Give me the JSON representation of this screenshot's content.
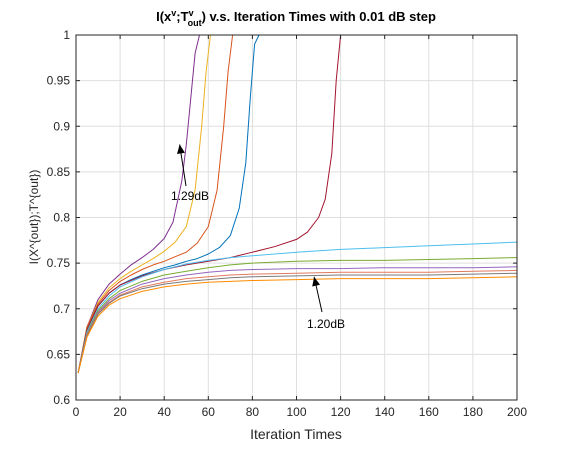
{
  "chart_data": {
    "type": "line",
    "title": {
      "prefix": "I(x",
      "sup1": "v",
      "mid": ";T",
      "sup2": "v",
      "sub2": "out",
      "suffix": ") v.s. Iteration Times with 0.01 dB step"
    },
    "xlabel": "Iteration Times",
    "ylabel": "I(X^{out});T^{out})",
    "xlim": [
      0,
      200
    ],
    "ylim": [
      0.6,
      1.0
    ],
    "xticks": [
      0,
      20,
      40,
      60,
      80,
      100,
      120,
      140,
      160,
      180,
      200
    ],
    "yticks": [
      0.6,
      0.65,
      0.7,
      0.75,
      0.8,
      0.85,
      0.9,
      0.95,
      1.0
    ],
    "grid": true,
    "annotations": [
      {
        "text": "1.29dB",
        "points_to": {
          "x": 47,
          "y": 0.88
        }
      },
      {
        "text": "1.20dB",
        "points_to": {
          "x": 108,
          "y": 0.735
        }
      }
    ],
    "series": [
      {
        "color": "#7E2F8E",
        "points": [
          [
            1,
            0.63
          ],
          [
            5,
            0.68
          ],
          [
            10,
            0.71
          ],
          [
            15,
            0.727
          ],
          [
            20,
            0.738
          ],
          [
            25,
            0.748
          ],
          [
            30,
            0.756
          ],
          [
            35,
            0.765
          ],
          [
            40,
            0.777
          ],
          [
            44,
            0.795
          ],
          [
            48,
            0.84
          ],
          [
            50,
            0.88
          ],
          [
            52,
            0.93
          ],
          [
            54,
            0.98
          ],
          [
            56,
            1.0
          ],
          [
            200,
            1.0
          ]
        ]
      },
      {
        "color": "#EDB120",
        "points": [
          [
            1,
            0.63
          ],
          [
            5,
            0.68
          ],
          [
            10,
            0.707
          ],
          [
            15,
            0.723
          ],
          [
            20,
            0.733
          ],
          [
            25,
            0.741
          ],
          [
            30,
            0.748
          ],
          [
            35,
            0.755
          ],
          [
            40,
            0.763
          ],
          [
            45,
            0.773
          ],
          [
            50,
            0.79
          ],
          [
            54,
            0.83
          ],
          [
            57,
            0.9
          ],
          [
            59,
            0.96
          ],
          [
            61,
            1.0
          ],
          [
            200,
            1.0
          ]
        ]
      },
      {
        "color": "#D95319",
        "points": [
          [
            1,
            0.63
          ],
          [
            5,
            0.68
          ],
          [
            10,
            0.705
          ],
          [
            15,
            0.72
          ],
          [
            20,
            0.73
          ],
          [
            25,
            0.737
          ],
          [
            30,
            0.743
          ],
          [
            35,
            0.748
          ],
          [
            40,
            0.752
          ],
          [
            45,
            0.757
          ],
          [
            50,
            0.762
          ],
          [
            55,
            0.772
          ],
          [
            60,
            0.79
          ],
          [
            64,
            0.83
          ],
          [
            67,
            0.9
          ],
          [
            69,
            0.96
          ],
          [
            71,
            1.0
          ],
          [
            200,
            1.0
          ]
        ]
      },
      {
        "color": "#0072BD",
        "points": [
          [
            1,
            0.63
          ],
          [
            5,
            0.677
          ],
          [
            10,
            0.703
          ],
          [
            15,
            0.717
          ],
          [
            20,
            0.726
          ],
          [
            25,
            0.732
          ],
          [
            30,
            0.737
          ],
          [
            35,
            0.741
          ],
          [
            40,
            0.745
          ],
          [
            45,
            0.748
          ],
          [
            50,
            0.752
          ],
          [
            55,
            0.755
          ],
          [
            60,
            0.76
          ],
          [
            65,
            0.767
          ],
          [
            70,
            0.78
          ],
          [
            74,
            0.81
          ],
          [
            77,
            0.86
          ],
          [
            79,
            0.93
          ],
          [
            81,
            0.99
          ],
          [
            83,
            1.0
          ],
          [
            200,
            1.0
          ]
        ]
      },
      {
        "color": "#A2142F",
        "points": [
          [
            1,
            0.63
          ],
          [
            5,
            0.677
          ],
          [
            10,
            0.703
          ],
          [
            15,
            0.717
          ],
          [
            20,
            0.726
          ],
          [
            30,
            0.736
          ],
          [
            40,
            0.743
          ],
          [
            50,
            0.748
          ],
          [
            60,
            0.752
          ],
          [
            70,
            0.756
          ],
          [
            80,
            0.762
          ],
          [
            90,
            0.768
          ],
          [
            100,
            0.776
          ],
          [
            105,
            0.784
          ],
          [
            110,
            0.8
          ],
          [
            113,
            0.82
          ],
          [
            116,
            0.87
          ],
          [
            118,
            0.95
          ],
          [
            120,
            1.0
          ],
          [
            200,
            1.0
          ]
        ]
      },
      {
        "color": "#4DBEEE",
        "points": [
          [
            1,
            0.63
          ],
          [
            5,
            0.675
          ],
          [
            10,
            0.7
          ],
          [
            15,
            0.714
          ],
          [
            20,
            0.724
          ],
          [
            30,
            0.735
          ],
          [
            40,
            0.743
          ],
          [
            50,
            0.749
          ],
          [
            60,
            0.753
          ],
          [
            70,
            0.756
          ],
          [
            80,
            0.758
          ],
          [
            100,
            0.762
          ],
          [
            120,
            0.765
          ],
          [
            140,
            0.767
          ],
          [
            160,
            0.769
          ],
          [
            180,
            0.771
          ],
          [
            200,
            0.773
          ]
        ]
      },
      {
        "color": "#77AC30",
        "points": [
          [
            1,
            0.63
          ],
          [
            5,
            0.673
          ],
          [
            10,
            0.698
          ],
          [
            15,
            0.711
          ],
          [
            20,
            0.72
          ],
          [
            30,
            0.73
          ],
          [
            40,
            0.737
          ],
          [
            50,
            0.741
          ],
          [
            60,
            0.745
          ],
          [
            70,
            0.748
          ],
          [
            80,
            0.75
          ],
          [
            100,
            0.752
          ],
          [
            120,
            0.753
          ],
          [
            140,
            0.753
          ],
          [
            160,
            0.754
          ],
          [
            180,
            0.755
          ],
          [
            200,
            0.756
          ]
        ]
      },
      {
        "color": "#9467BD",
        "points": [
          [
            1,
            0.63
          ],
          [
            5,
            0.672
          ],
          [
            10,
            0.696
          ],
          [
            15,
            0.709
          ],
          [
            20,
            0.717
          ],
          [
            30,
            0.727
          ],
          [
            40,
            0.733
          ],
          [
            50,
            0.737
          ],
          [
            60,
            0.74
          ],
          [
            70,
            0.742
          ],
          [
            80,
            0.743
          ],
          [
            100,
            0.744
          ],
          [
            120,
            0.744
          ],
          [
            140,
            0.745
          ],
          [
            160,
            0.745
          ],
          [
            180,
            0.745
          ],
          [
            200,
            0.746
          ]
        ]
      },
      {
        "color": "#E07A5F",
        "points": [
          [
            1,
            0.63
          ],
          [
            5,
            0.671
          ],
          [
            10,
            0.695
          ],
          [
            15,
            0.707
          ],
          [
            20,
            0.715
          ],
          [
            30,
            0.724
          ],
          [
            40,
            0.729
          ],
          [
            50,
            0.733
          ],
          [
            60,
            0.735
          ],
          [
            70,
            0.737
          ],
          [
            80,
            0.738
          ],
          [
            100,
            0.739
          ],
          [
            120,
            0.74
          ],
          [
            140,
            0.74
          ],
          [
            160,
            0.74
          ],
          [
            180,
            0.741
          ],
          [
            200,
            0.742
          ]
        ]
      },
      {
        "color": "#7A7A7A",
        "points": [
          [
            1,
            0.63
          ],
          [
            5,
            0.67
          ],
          [
            10,
            0.694
          ],
          [
            15,
            0.706
          ],
          [
            20,
            0.714
          ],
          [
            30,
            0.722
          ],
          [
            40,
            0.727
          ],
          [
            50,
            0.73
          ],
          [
            60,
            0.732
          ],
          [
            70,
            0.734
          ],
          [
            80,
            0.735
          ],
          [
            100,
            0.736
          ],
          [
            120,
            0.737
          ],
          [
            140,
            0.737
          ],
          [
            160,
            0.737
          ],
          [
            180,
            0.738
          ],
          [
            200,
            0.739
          ]
        ]
      },
      {
        "color": "#FF8C00",
        "points": [
          [
            1,
            0.63
          ],
          [
            5,
            0.669
          ],
          [
            10,
            0.692
          ],
          [
            15,
            0.704
          ],
          [
            20,
            0.711
          ],
          [
            30,
            0.719
          ],
          [
            40,
            0.724
          ],
          [
            50,
            0.727
          ],
          [
            60,
            0.729
          ],
          [
            70,
            0.73
          ],
          [
            80,
            0.731
          ],
          [
            100,
            0.732
          ],
          [
            120,
            0.733
          ],
          [
            140,
            0.733
          ],
          [
            160,
            0.733
          ],
          [
            180,
            0.734
          ],
          [
            200,
            0.735
          ]
        ]
      }
    ]
  }
}
